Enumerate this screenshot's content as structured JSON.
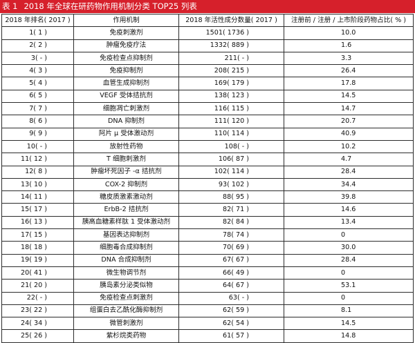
{
  "title": {
    "label": "表 1",
    "text": "2018 年全球在研药物作用机制分类 TOP25 列表"
  },
  "headers": [
    "2018 年排名( 2017 )",
    "作用机制",
    "2018 年活性成分数量( 2017 )",
    "注册前 / 注册 / 上市阶段药物占比( % )"
  ],
  "rows": [
    {
      "rank": "1( 1 )",
      "mech": "免疫刺激剂",
      "count": "1501( 1736 )",
      "ratio": "10.0"
    },
    {
      "rank": "2( 2 )",
      "mech": "肿瘤免疫疗法",
      "count": "1332( 889 )",
      "ratio": "1.6"
    },
    {
      "rank": "3( - )",
      "mech": "免疫检查点抑制剂",
      "count": "211( - )",
      "ratio": "3.3"
    },
    {
      "rank": "4( 3 )",
      "mech": "免疫抑制剂",
      "count": "208( 215 )",
      "ratio": "26.4"
    },
    {
      "rank": "5( 4 )",
      "mech": "血管生成抑制剂",
      "count": "169( 179 )",
      "ratio": "17.8"
    },
    {
      "rank": "6( 5 )",
      "mech": "VEGF 受体拮抗剂",
      "count": "138( 123 )",
      "ratio": "14.5"
    },
    {
      "rank": "7( 7 )",
      "mech": "细胞凋亡刺激剂",
      "count": "116( 115 )",
      "ratio": "14.7"
    },
    {
      "rank": "8( 6 )",
      "mech": "DNA 抑制剂",
      "count": "111( 120 )",
      "ratio": "20.7"
    },
    {
      "rank": "9( 9 )",
      "mech": "阿片 μ 受体激动剂",
      "count": "110( 114 )",
      "ratio": "40.9"
    },
    {
      "rank": "10( - )",
      "mech": "放射性药物",
      "count": "108( - )",
      "ratio": "10.2"
    },
    {
      "rank": "11( 12 )",
      "mech": "T 细胞刺激剂",
      "count": "106( 87 )",
      "ratio": "4.7"
    },
    {
      "rank": "12( 8 )",
      "mech": "肿瘤坏死因子 -α 拮抗剂",
      "count": "102( 114 )",
      "ratio": "28.4"
    },
    {
      "rank": "13( 10 )",
      "mech": "COX-2 抑制剂",
      "count": "93( 102 )",
      "ratio": "34.4"
    },
    {
      "rank": "14( 11 )",
      "mech": "糖皮质激素激动剂",
      "count": "88( 95 )",
      "ratio": "39.8"
    },
    {
      "rank": "15( 17 )",
      "mech": "ErbB-2 拮抗剂",
      "count": "82( 71 )",
      "ratio": "14.6"
    },
    {
      "rank": "16( 13 )",
      "mech": "胰高血糖素样肽 1 受体激动剂",
      "count": "82( 84 )",
      "ratio": "13.4"
    },
    {
      "rank": "17( 15 )",
      "mech": "基因表达抑制剂",
      "count": "78( 74 )",
      "ratio": "0"
    },
    {
      "rank": "18( 18 )",
      "mech": "细胞毒合成抑制剂",
      "count": "70( 69 )",
      "ratio": "30.0"
    },
    {
      "rank": "19( 19 )",
      "mech": "DNA 合成抑制剂",
      "count": "67( 67 )",
      "ratio": "28.4"
    },
    {
      "rank": "20( 41 )",
      "mech": "微生物调节剂",
      "count": "66( 49 )",
      "ratio": "0"
    },
    {
      "rank": "21( 20 )",
      "mech": "胰岛素分泌类似物",
      "count": "64( 67 )",
      "ratio": "53.1"
    },
    {
      "rank": "22( - )",
      "mech": "免疫检查点刺激剂",
      "count": "63( - )",
      "ratio": "0"
    },
    {
      "rank": "23( 22 )",
      "mech": "组蛋白去乙酰化酶抑制剂",
      "count": "62( 59 )",
      "ratio": "8.1"
    },
    {
      "rank": "24( 34 )",
      "mech": "微管刺激剂",
      "count": "62( 54 )",
      "ratio": "14.5"
    },
    {
      "rank": "25( 26 )",
      "mech": "紫杉烷类药物",
      "count": "61( 57 )",
      "ratio": "14.8"
    }
  ]
}
